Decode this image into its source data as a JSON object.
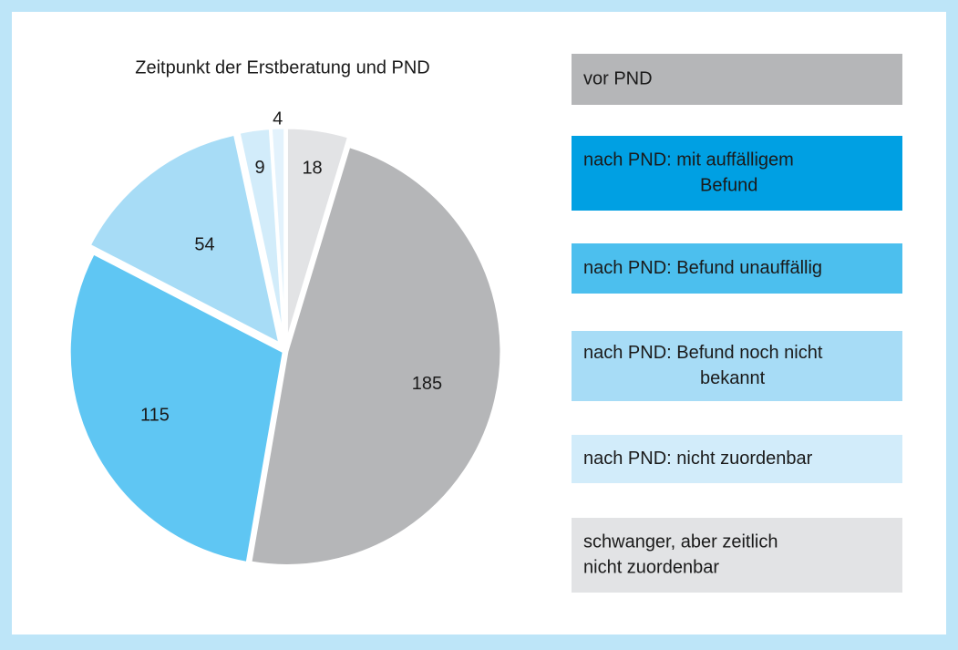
{
  "chart_data": {
    "type": "pie",
    "title": "Zeitpunkt der Erstberatung und PND",
    "values": [
      18,
      185,
      115,
      54,
      9,
      4
    ],
    "colors": [
      "#e2e3e5",
      "#b5b6b8",
      "#5fc6f3",
      "#a7dcf6",
      "#d2ecfa",
      "#e3f2fc"
    ],
    "legend": [
      {
        "lines": [
          "vor PND"
        ],
        "color": "#b5b6b8"
      },
      {
        "lines": [
          "nach PND: mit auffälligem",
          "Befund"
        ],
        "color": "#00a0e3"
      },
      {
        "lines": [
          "nach PND: Befund unauffällig"
        ],
        "color": "#4cbfee"
      },
      {
        "lines": [
          "nach PND: Befund noch nicht",
          "bekannt"
        ],
        "color": "#a7dcf6"
      },
      {
        "lines": [
          "nach PND: nicht zuordenbar"
        ],
        "color": "#d2ecfa"
      },
      {
        "lines": [
          "schwanger, aber zeitlich",
          "nicht zuordenbar"
        ],
        "color": "#e2e3e5"
      }
    ]
  }
}
